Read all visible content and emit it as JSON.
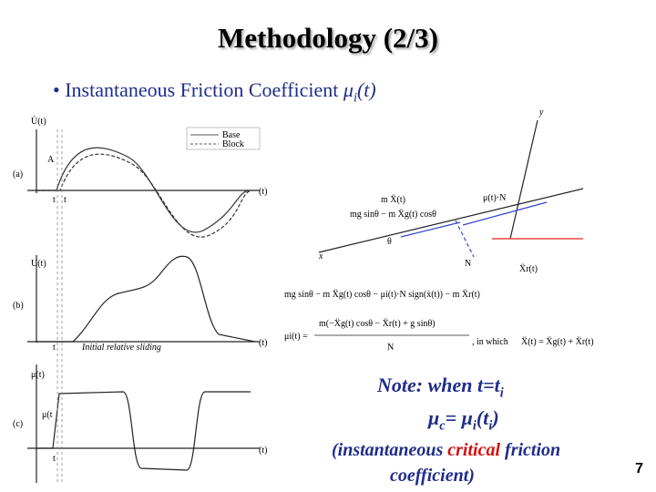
{
  "title": "Methodology (2/3)",
  "bullet": {
    "text": "Instantaneous Friction Coefficient ",
    "symbol": "μ",
    "sub": "i",
    "arg": "(t)"
  },
  "figure": {
    "panels": [
      "(a)",
      "(b)",
      "(c)"
    ],
    "y_labels": [
      "U̇(t)",
      "U(t)",
      "μ(t)"
    ],
    "x_label": "(t)",
    "legend": [
      "Base",
      "Block"
    ],
    "marker_a": "A",
    "marker_c": "μ(t",
    "tick_t0": "t",
    "tick_ti": "t",
    "annotation": "Initial relative sliding",
    "diagram": {
      "y": "y",
      "x": "x",
      "theta": "θ",
      "normal": "N",
      "force1": "m Ẍ(t)",
      "force2": "μ(t)·N",
      "force3": "mg sinθ − m Ẍg(t) cosθ",
      "accel": "Ẍr(t)"
    },
    "formula": {
      "line1": "mg sinθ − m Ẍg(t) cosθ − μi(t)·N sign(ẋ(t)) − m Ẍr(t)",
      "lhs": "μi(t) =",
      "num": "m(−Ẍg(t) cosθ − Ẍr(t) + g sinθ)",
      "den": "N",
      "which": ", in which",
      "rhs": "Ẍ(t) = Ẍg(t) + Ẍr(t)"
    }
  },
  "note": {
    "l1": "Note: when t=t",
    "l1_sub": "i",
    "l2a": "μ",
    "l2_sub1": "c",
    "l2b": "= μ",
    "l2_sub2": "i",
    "l2c": "(t",
    "l2_sub3": "i",
    "l2d": ")",
    "l3a": "(instantaneous ",
    "l3_red": "critical",
    "l3b": " friction",
    "l4": "coefficient)"
  },
  "page_number": "7"
}
